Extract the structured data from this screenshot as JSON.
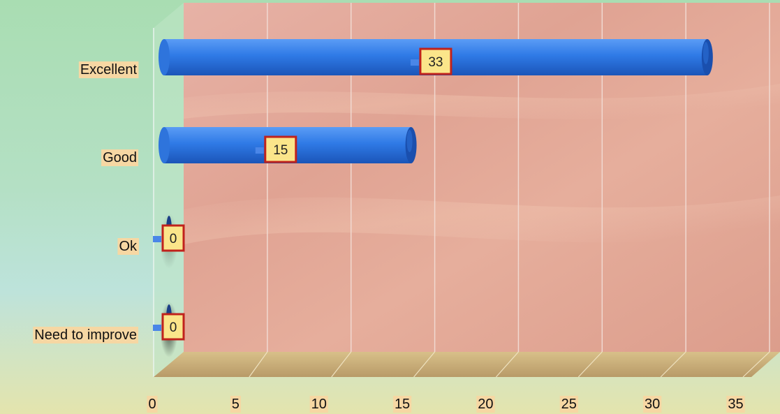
{
  "chart_data": {
    "type": "bar",
    "orientation": "horizontal",
    "categories": [
      "Excellent",
      "Good",
      "Ok",
      "Need to improve"
    ],
    "values": [
      33,
      15,
      0,
      0
    ],
    "data_labels": [
      "33",
      "15",
      "0",
      "0"
    ],
    "xticks": [
      "0",
      "5",
      "10",
      "15",
      "20",
      "25",
      "30",
      "35"
    ],
    "xlim": [
      0,
      35
    ],
    "title": "",
    "xlabel": "",
    "ylabel": "",
    "grid": true,
    "legend": "none",
    "colors": {
      "bar": "#2f7ae6",
      "bar_dark": "#1a4fae",
      "wall": "#e2a595",
      "floor": "#c9b07c",
      "label_bg": "#f6d7a3",
      "data_label_bg": "#fbe58a",
      "data_label_border": "#c0221c"
    }
  }
}
